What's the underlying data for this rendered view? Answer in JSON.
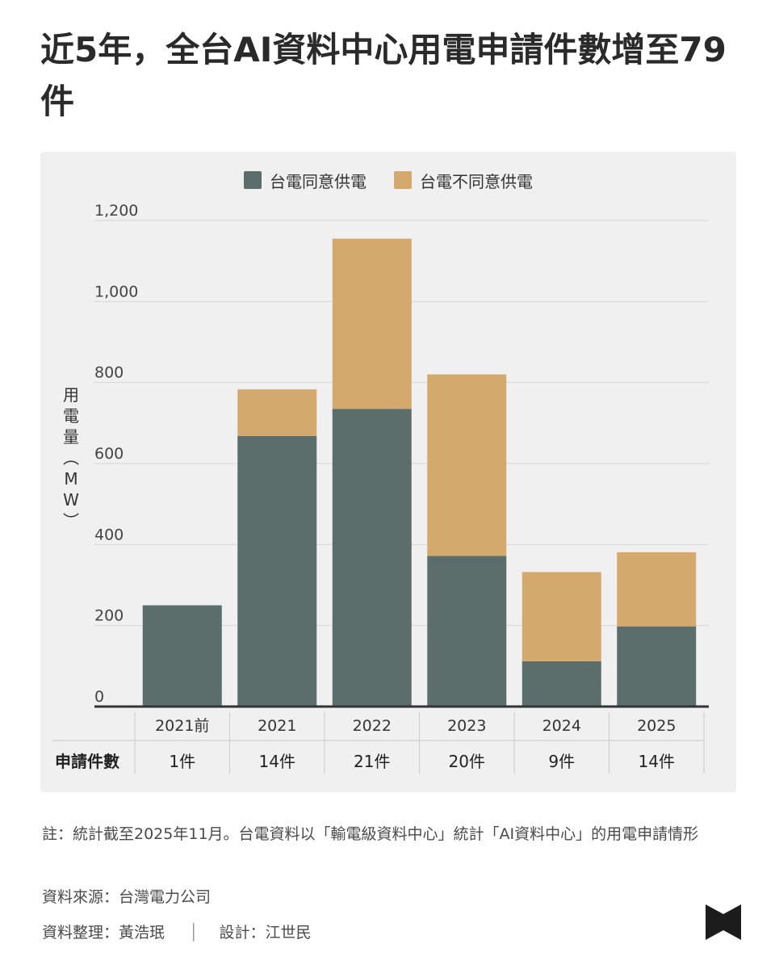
{
  "title": "近5年，全台AI資料中心用電申請件數增至79件",
  "legend": [
    {
      "label": "台電同意供電",
      "color": "#5c6e6c"
    },
    {
      "label": "台電不同意供電",
      "color": "#d4a96d"
    }
  ],
  "y_axis_label": "用電量（MW）",
  "table_row_label": "申請件數",
  "chart_data": {
    "type": "bar",
    "stacked": true,
    "categories": [
      "2021前",
      "2021",
      "2022",
      "2023",
      "2024",
      "2025"
    ],
    "series": [
      {
        "name": "台電同意供電",
        "values": [
          250,
          668,
          735,
          372,
          112,
          198
        ],
        "color": "#5c6e6c"
      },
      {
        "name": "台電不同意供電",
        "values": [
          0,
          115,
          420,
          448,
          220,
          183
        ],
        "color": "#d4a96d"
      }
    ],
    "applications": [
      "1件",
      "14件",
      "21件",
      "20件",
      "9件",
      "14件"
    ],
    "ylabel": "用電量（MW）",
    "ylim": [
      0,
      1200
    ],
    "yticks": [
      0,
      200,
      400,
      600,
      800,
      1000,
      1200
    ],
    "ytick_labels": [
      "0",
      "200",
      "400",
      "600",
      "800",
      "1,000",
      "1,200"
    ],
    "grid": true,
    "legend_position": "top-center"
  },
  "footer": {
    "note": "註：統計截至2025年11月。台電資料以「輸電級資料中心」統計「AI資料中心」的用電申請情形",
    "source": "資料來源：台灣電力公司",
    "data_arrangement": "資料整理：黃浩珉",
    "separator": "│",
    "design": "設計：江世民"
  },
  "logo_icon": "bowtie-logo-icon"
}
